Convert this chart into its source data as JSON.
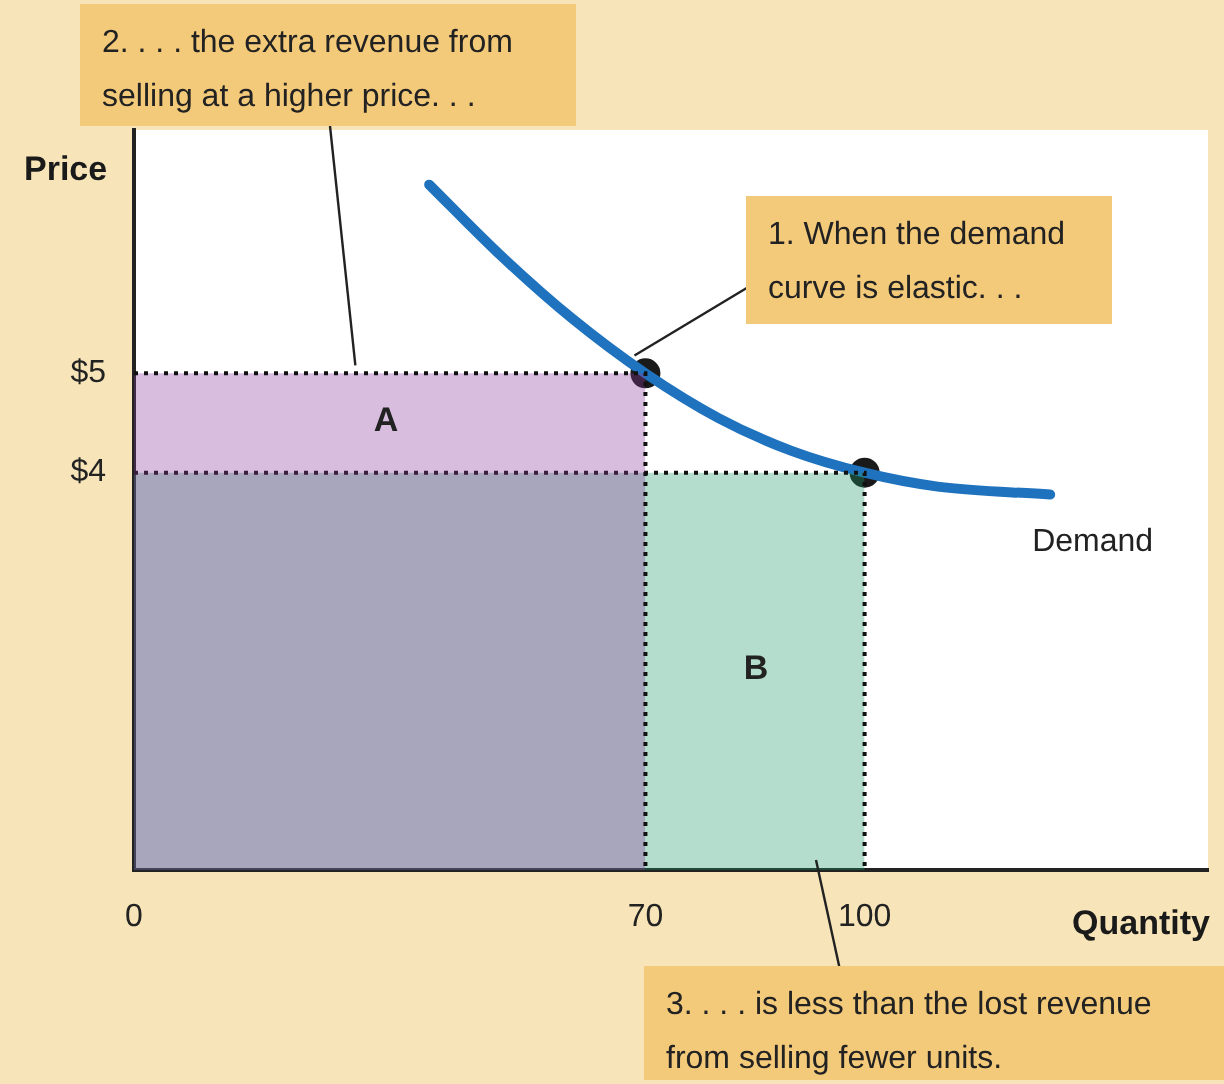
{
  "chart_data": {
    "type": "line",
    "xlabel": "Quantity",
    "ylabel": "Price",
    "xlim": [
      0,
      147
    ],
    "ylim": [
      0,
      7.45
    ],
    "xticks": [
      0,
      70,
      100
    ],
    "yticks": [
      {
        "value": 4,
        "label": "$4"
      },
      {
        "value": 5,
        "label": "$5"
      }
    ],
    "grid": false,
    "legend": false,
    "line_style": "solid",
    "series": [
      {
        "type": "area",
        "color": "#8e3a9d",
        "x": [
          0,
          70,
          70
        ],
        "values": [
          5,
          5,
          0
        ],
        "line_style": "dotted",
        "marker": "none"
      },
      {
        "type": "area",
        "color": "#1f9a6a",
        "x": [
          0,
          100,
          100
        ],
        "values": [
          4,
          4,
          0
        ],
        "line_style": "dotted",
        "marker": "none"
      },
      {
        "type": "line",
        "name": "Demand",
        "color": "#1f72bd",
        "x": [
          40.4,
          50,
          60,
          70,
          80,
          90,
          100,
          110,
          125.4
        ],
        "values": [
          6.9,
          6.2,
          5.55,
          5,
          4.55,
          4.22,
          4,
          3.86,
          3.78
        ],
        "marker": "none"
      },
      {
        "type": "scatter",
        "color": "#1a1a1a",
        "x": [
          70,
          100
        ],
        "values": [
          5,
          4
        ],
        "marker": "circle"
      }
    ],
    "annotations": [
      {
        "text": "1. When the demand curve is elastic. . .",
        "x": 68.5,
        "y": 5.18
      },
      {
        "text": "2. . . . the extra revenue from selling at a higher price. . .",
        "x": 30.3,
        "y": 5.08
      },
      "3. . . . is less than the lost revenue from selling fewer units.",
      "A",
      "B"
    ]
  }
}
